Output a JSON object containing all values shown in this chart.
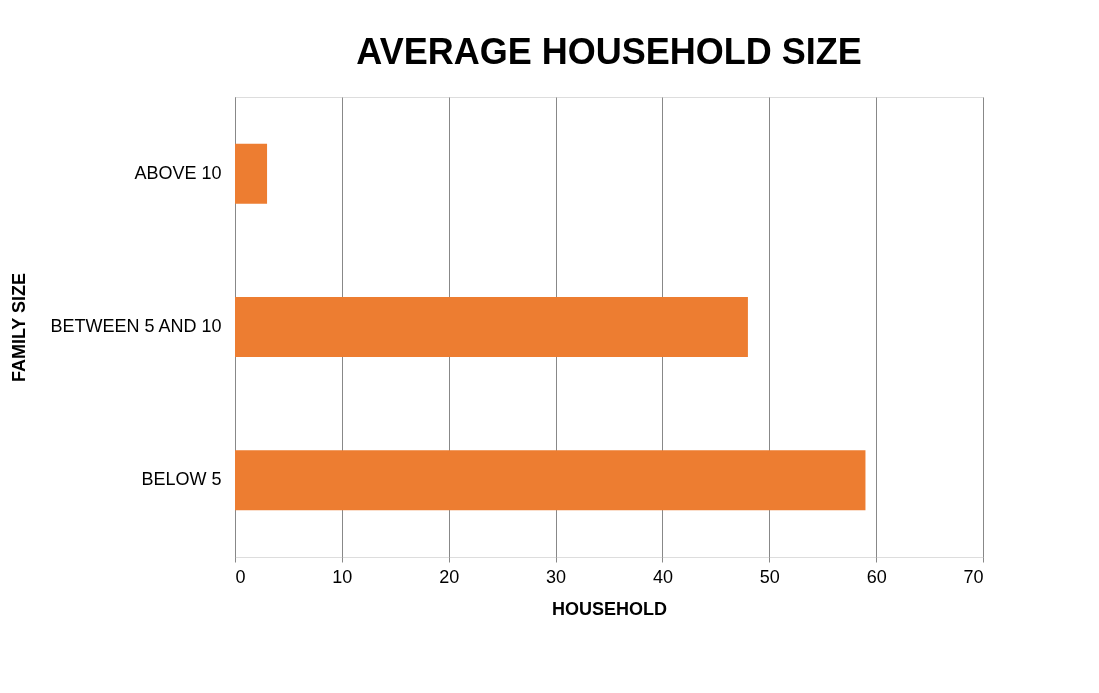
{
  "chart_data": {
    "type": "bar",
    "orientation": "horizontal",
    "title": "AVERAGE HOUSEHOLD SIZE",
    "xlabel": "HOUSEHOLD",
    "ylabel": "FAMILY SIZE",
    "categories": [
      "ABOVE 10",
      "BETWEEN 5 AND 10",
      "BELOW 5"
    ],
    "values": [
      3,
      48,
      59
    ],
    "color": "#ed7d31",
    "xlim": [
      0,
      70
    ],
    "xticks": [
      0,
      10,
      20,
      30,
      40,
      50,
      60,
      70
    ],
    "grid": "x"
  }
}
